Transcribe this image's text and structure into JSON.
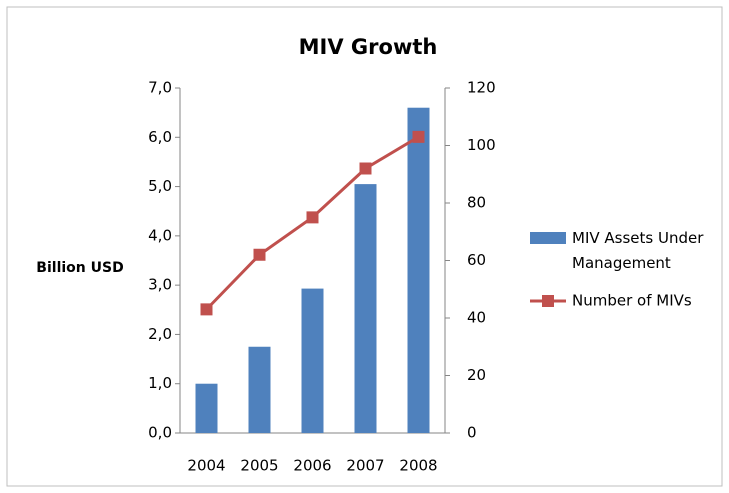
{
  "chart_data": {
    "type": "bar",
    "title": "MIV Growth",
    "ylabel": "Billion USD",
    "categories": [
      "2004",
      "2005",
      "2006",
      "2007",
      "2008"
    ],
    "series": [
      {
        "name": "MIV Assets Under Management",
        "type": "bar",
        "color": "#4f81bd",
        "values": [
          1.0,
          1.75,
          2.93,
          5.05,
          6.6
        ]
      },
      {
        "name": "Number of MIVs",
        "type": "line",
        "axis": "y2",
        "color": "#c0504d",
        "values": [
          43,
          62,
          75,
          92,
          103
        ]
      }
    ],
    "ylim": [
      0,
      7
    ],
    "yticks": [
      {
        "value": 0,
        "label": "0,0"
      },
      {
        "value": 1,
        "label": "1,0"
      },
      {
        "value": 2,
        "label": "2,0"
      },
      {
        "value": 3,
        "label": "3,0"
      },
      {
        "value": 4,
        "label": "4,0"
      },
      {
        "value": 5,
        "label": "5,0"
      },
      {
        "value": 6,
        "label": "6,0"
      },
      {
        "value": 7,
        "label": "7,0"
      }
    ],
    "y2lim": [
      0,
      120
    ],
    "y2ticks": [
      0,
      20,
      40,
      60,
      80,
      100,
      120
    ],
    "legend": "right"
  }
}
